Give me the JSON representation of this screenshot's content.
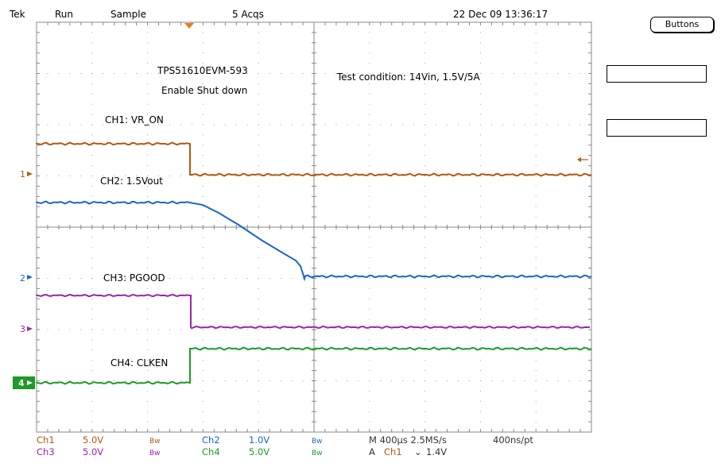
{
  "header": {
    "brand": "Tek",
    "run_state": "Run",
    "acq_mode": "Sample",
    "acq_count": "5 Acqs",
    "datetime": "22 Dec 09 13:36:17"
  },
  "side_menu": {
    "buttons_label": "Buttons"
  },
  "annotations": {
    "board": "TPS51610EVM-593",
    "event": "Enable Shut down",
    "test_condition": "Test condition: 14Vin, 1.5V/5A",
    "ch1_label": "CH1: VR_ON",
    "ch2_label": "CH2: 1.5Vout",
    "ch3_label": "CH3: PGOOD",
    "ch4_label": "CH4: CLKEN"
  },
  "channels": [
    {
      "name": "Ch1",
      "scale": "5.0V",
      "bw": "Bw",
      "color": "#b05a10",
      "marker": "1"
    },
    {
      "name": "Ch2",
      "scale": "1.0V",
      "bw": "Bw",
      "color": "#1a66c8",
      "marker": "2"
    },
    {
      "name": "Ch3",
      "scale": "5.0V",
      "bw": "Bw",
      "color": "#9c22b0",
      "marker": "3"
    },
    {
      "name": "Ch4",
      "scale": "5.0V",
      "bw": "Bw",
      "color": "#1e9a28",
      "marker": "4"
    }
  ],
  "timebase": {
    "horizontal": "M 400µs 2.5MS/s",
    "record": "400ns/pt",
    "trigger_prefix": "A",
    "trigger_source": "Ch1",
    "trigger_slope": "⌄",
    "trigger_level": "1.4V"
  },
  "colors": {
    "grid": "#888888",
    "trigger_marker": "#f07820"
  }
}
